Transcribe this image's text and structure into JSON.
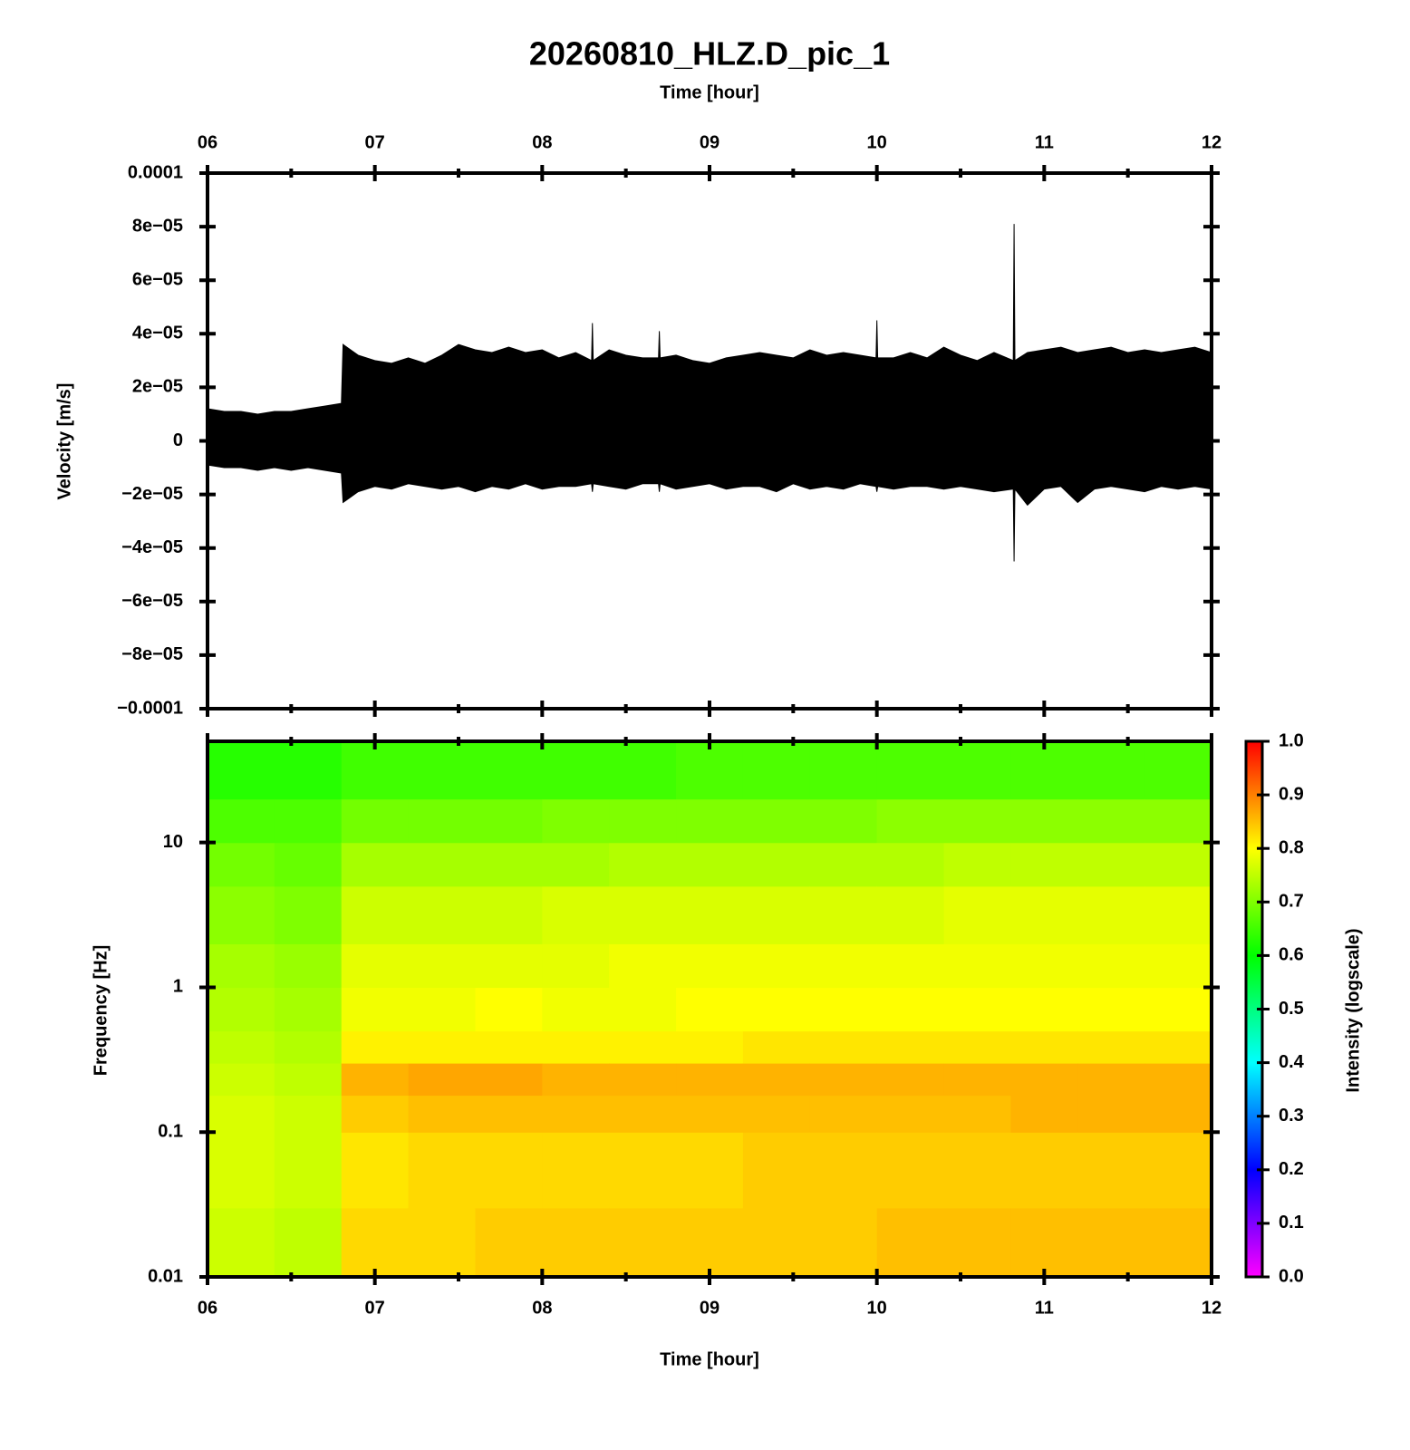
{
  "chart_data": [
    {
      "type": "line",
      "title": "20260810_HLZ.D_pic_1",
      "xlabel": "Time [hour]",
      "ylabel": "Velocity [m/s]",
      "color": "#000000",
      "xlim": [
        6,
        12
      ],
      "xticks": [
        {
          "value": 6,
          "label": "06"
        },
        {
          "value": 7,
          "label": "07"
        },
        {
          "value": 8,
          "label": "08"
        },
        {
          "value": 9,
          "label": "09"
        },
        {
          "value": 10,
          "label": "10"
        },
        {
          "value": 11,
          "label": "11"
        },
        {
          "value": 12,
          "label": "12"
        }
      ],
      "xminorticks": [
        6.5,
        7.5,
        8.5,
        9.5,
        10.5,
        11.5
      ],
      "ylim": [
        -0.0001,
        0.0001
      ],
      "yticks": [
        {
          "value": -0.0001,
          "label": "−0.0001"
        },
        {
          "value": -8e-05,
          "label": "−8e−05"
        },
        {
          "value": -6e-05,
          "label": "−6e−05"
        },
        {
          "value": -4e-05,
          "label": "−4e−05"
        },
        {
          "value": -2e-05,
          "label": "−2e−05"
        },
        0,
        {
          "value": 2e-05,
          "label": "2e−05"
        },
        {
          "value": 4e-05,
          "label": "4e−05"
        },
        {
          "value": 6e-05,
          "label": "6e−05"
        },
        {
          "value": 8e-05,
          "label": "8e−05"
        },
        0.0001
      ],
      "x": [
        6.0,
        6.1,
        6.2,
        6.3,
        6.4,
        6.5,
        6.6,
        6.7,
        6.8,
        6.81,
        6.9,
        7.0,
        7.1,
        7.2,
        7.3,
        7.4,
        7.5,
        7.6,
        7.7,
        7.8,
        7.9,
        8.0,
        8.1,
        8.2,
        8.295,
        8.3,
        8.305,
        8.4,
        8.5,
        8.6,
        8.695,
        8.7,
        8.705,
        8.8,
        8.9,
        9.0,
        9.1,
        9.2,
        9.3,
        9.4,
        9.5,
        9.6,
        9.7,
        9.8,
        9.9,
        9.995,
        10.0,
        10.005,
        10.1,
        10.2,
        10.3,
        10.4,
        10.5,
        10.6,
        10.7,
        10.815,
        10.82,
        10.825,
        10.9,
        11.0,
        11.1,
        11.2,
        11.3,
        11.4,
        11.5,
        11.6,
        11.7,
        11.8,
        11.9,
        12.0
      ],
      "upper": [
        1.2e-05,
        1.1e-05,
        1.1e-05,
        1e-05,
        1.1e-05,
        1.1e-05,
        1.2e-05,
        1.3e-05,
        1.4e-05,
        3.6e-05,
        3.2e-05,
        3e-05,
        2.9e-05,
        3.1e-05,
        2.9e-05,
        3.2e-05,
        3.6e-05,
        3.4e-05,
        3.3e-05,
        3.5e-05,
        3.3e-05,
        3.4e-05,
        3.1e-05,
        3.3e-05,
        3e-05,
        4.4e-05,
        3e-05,
        3.4e-05,
        3.2e-05,
        3.1e-05,
        3.1e-05,
        4.1e-05,
        3.1e-05,
        3.2e-05,
        3e-05,
        2.9e-05,
        3.1e-05,
        3.2e-05,
        3.3e-05,
        3.2e-05,
        3.1e-05,
        3.4e-05,
        3.2e-05,
        3.3e-05,
        3.2e-05,
        3.1e-05,
        4.5e-05,
        3.1e-05,
        3.1e-05,
        3.3e-05,
        3.1e-05,
        3.5e-05,
        3.2e-05,
        3e-05,
        3.3e-05,
        3e-05,
        8.1e-05,
        3e-05,
        3.3e-05,
        3.4e-05,
        3.5e-05,
        3.3e-05,
        3.4e-05,
        3.5e-05,
        3.3e-05,
        3.4e-05,
        3.3e-05,
        3.4e-05,
        3.5e-05,
        3.3e-05
      ],
      "lower": [
        -9e-06,
        -1e-05,
        -1e-05,
        -1.1e-05,
        -1e-05,
        -1.1e-05,
        -1e-05,
        -1.1e-05,
        -1.2e-05,
        -2.3e-05,
        -1.9e-05,
        -1.7e-05,
        -1.8e-05,
        -1.6e-05,
        -1.7e-05,
        -1.8e-05,
        -1.7e-05,
        -1.9e-05,
        -1.7e-05,
        -1.8e-05,
        -1.6e-05,
        -1.8e-05,
        -1.7e-05,
        -1.7e-05,
        -1.6e-05,
        -1.9e-05,
        -1.6e-05,
        -1.7e-05,
        -1.8e-05,
        -1.6e-05,
        -1.6e-05,
        -1.9e-05,
        -1.6e-05,
        -1.8e-05,
        -1.7e-05,
        -1.6e-05,
        -1.8e-05,
        -1.7e-05,
        -1.7e-05,
        -1.9e-05,
        -1.6e-05,
        -1.8e-05,
        -1.7e-05,
        -1.8e-05,
        -1.6e-05,
        -1.7e-05,
        -1.9e-05,
        -1.7e-05,
        -1.8e-05,
        -1.7e-05,
        -1.7e-05,
        -1.8e-05,
        -1.7e-05,
        -1.8e-05,
        -1.9e-05,
        -1.8e-05,
        -4.5e-05,
        -1.8e-05,
        -2.4e-05,
        -1.8e-05,
        -1.7e-05,
        -2.3e-05,
        -1.8e-05,
        -1.7e-05,
        -1.8e-05,
        -1.9e-05,
        -1.7e-05,
        -1.8e-05,
        -1.7e-05,
        -1.8e-05
      ]
    },
    {
      "type": "heatmap",
      "xlabel": "Time [hour]",
      "ylabel": "Frequency [Hz]",
      "xlim": [
        6,
        12
      ],
      "xticks": [
        {
          "value": 6,
          "label": "06"
        },
        {
          "value": 7,
          "label": "07"
        },
        {
          "value": 8,
          "label": "08"
        },
        {
          "value": 9,
          "label": "09"
        },
        {
          "value": 10,
          "label": "10"
        },
        {
          "value": 11,
          "label": "11"
        },
        {
          "value": 12,
          "label": "12"
        }
      ],
      "xminorticks": [
        6.5,
        7.5,
        8.5,
        9.5,
        10.5,
        11.5
      ],
      "yscale": "log",
      "ylim": [
        0.01,
        50
      ],
      "yticks": [
        0.01,
        0.1,
        1,
        10
      ],
      "x_edges": [
        6.0,
        6.4,
        6.8,
        7.2,
        7.6,
        8.0,
        8.4,
        8.8,
        9.2,
        9.6,
        10.0,
        10.4,
        10.8,
        11.2,
        11.6,
        12.0
      ],
      "y_edges": [
        0.01,
        0.03,
        0.1,
        0.18,
        0.3,
        0.5,
        1,
        2,
        5,
        10,
        20,
        50
      ],
      "z": [
        [
          0.76,
          0.77,
          0.77,
          0.76,
          0.75,
          0.74,
          0.73,
          0.71,
          0.69,
          0.66,
          0.63
        ],
        [
          0.75,
          0.76,
          0.76,
          0.75,
          0.74,
          0.73,
          0.72,
          0.7,
          0.68,
          0.66,
          0.63
        ],
        [
          0.83,
          0.82,
          0.84,
          0.86,
          0.81,
          0.79,
          0.78,
          0.76,
          0.73,
          0.69,
          0.65
        ],
        [
          0.83,
          0.83,
          0.85,
          0.87,
          0.81,
          0.79,
          0.78,
          0.76,
          0.73,
          0.69,
          0.65
        ],
        [
          0.84,
          0.83,
          0.85,
          0.87,
          0.81,
          0.8,
          0.78,
          0.76,
          0.73,
          0.69,
          0.65
        ],
        [
          0.84,
          0.83,
          0.85,
          0.86,
          0.81,
          0.79,
          0.78,
          0.77,
          0.73,
          0.7,
          0.65
        ],
        [
          0.84,
          0.83,
          0.85,
          0.86,
          0.81,
          0.79,
          0.79,
          0.77,
          0.74,
          0.7,
          0.65
        ],
        [
          0.84,
          0.83,
          0.85,
          0.86,
          0.81,
          0.8,
          0.79,
          0.77,
          0.74,
          0.7,
          0.66
        ],
        [
          0.84,
          0.84,
          0.85,
          0.86,
          0.82,
          0.8,
          0.79,
          0.77,
          0.74,
          0.7,
          0.66
        ],
        [
          0.84,
          0.84,
          0.85,
          0.86,
          0.82,
          0.8,
          0.79,
          0.77,
          0.74,
          0.7,
          0.66
        ],
        [
          0.85,
          0.84,
          0.85,
          0.86,
          0.82,
          0.8,
          0.79,
          0.77,
          0.74,
          0.71,
          0.66
        ],
        [
          0.85,
          0.84,
          0.85,
          0.86,
          0.82,
          0.8,
          0.79,
          0.78,
          0.75,
          0.71,
          0.66
        ],
        [
          0.85,
          0.84,
          0.86,
          0.86,
          0.82,
          0.8,
          0.79,
          0.78,
          0.75,
          0.71,
          0.66
        ],
        [
          0.85,
          0.84,
          0.86,
          0.86,
          0.82,
          0.8,
          0.79,
          0.78,
          0.75,
          0.71,
          0.66
        ],
        [
          0.85,
          0.84,
          0.86,
          0.86,
          0.82,
          0.8,
          0.79,
          0.78,
          0.75,
          0.71,
          0.66
        ]
      ],
      "colorscale": [
        [
          0,
          "#ff00ff"
        ],
        [
          0.2,
          "#0000ff"
        ],
        [
          0.4,
          "#00ffff"
        ],
        [
          0.6,
          "#00ff00"
        ],
        [
          0.8,
          "#ffff00"
        ],
        [
          1,
          "#ff0000"
        ]
      ],
      "colorbar": {
        "label": "Intensity (logscale)",
        "lim": [
          0,
          1
        ],
        "ticks": [
          {
            "value": 0,
            "label": "0.0"
          },
          0.1,
          0.2,
          0.3,
          0.4,
          0.5,
          0.6,
          0.7,
          0.8,
          0.9,
          {
            "value": 1,
            "label": "1.0"
          }
        ]
      }
    }
  ]
}
